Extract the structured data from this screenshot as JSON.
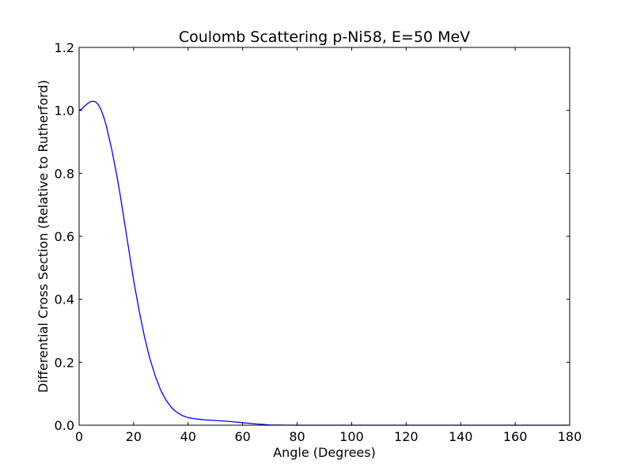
{
  "chart_data": {
    "type": "line",
    "title": "Coulomb Scattering p-Ni58, E=50 MeV",
    "xlabel": "Angle (Degrees)",
    "ylabel": "Differential Cross Section (Relative to Rutherford)",
    "xlim": [
      0,
      180
    ],
    "ylim": [
      0,
      1.2
    ],
    "xticks": [
      0,
      20,
      40,
      60,
      80,
      100,
      120,
      140,
      160,
      180
    ],
    "xtick_labels": [
      "0",
      "20",
      "40",
      "60",
      "80",
      "100",
      "120",
      "140",
      "160",
      "180"
    ],
    "yticks": [
      0,
      0.2,
      0.4,
      0.6,
      0.8,
      1.0,
      1.2
    ],
    "ytick_labels": [
      "0.0",
      "0.2",
      "0.4",
      "0.6",
      "0.8",
      "1.0",
      "1.2"
    ],
    "grid": false,
    "legend": "none",
    "series": [
      {
        "color": "#0000ff",
        "x": [
          0,
          1,
          2,
          3,
          4,
          5,
          6,
          7,
          8,
          9,
          10,
          12,
          14,
          15,
          16,
          18,
          20,
          22,
          24,
          26,
          28,
          30,
          32,
          34,
          36,
          38,
          40,
          42,
          44,
          46,
          48,
          50,
          55,
          60,
          65,
          70,
          75,
          80,
          90,
          100,
          120,
          140,
          160,
          180
        ],
        "y": [
          1.0,
          1.005,
          1.013,
          1.021,
          1.027,
          1.029,
          1.027,
          1.019,
          1.003,
          0.98,
          0.95,
          0.875,
          0.785,
          0.735,
          0.68,
          0.57,
          0.46,
          0.365,
          0.28,
          0.21,
          0.155,
          0.11,
          0.078,
          0.055,
          0.04,
          0.03,
          0.024,
          0.021,
          0.019,
          0.017,
          0.016,
          0.015,
          0.012,
          0.008,
          0.004,
          0.001,
          0.0003,
          0.0,
          0.0,
          0.0,
          0.0,
          0.0,
          0.0,
          0.0
        ]
      }
    ]
  }
}
